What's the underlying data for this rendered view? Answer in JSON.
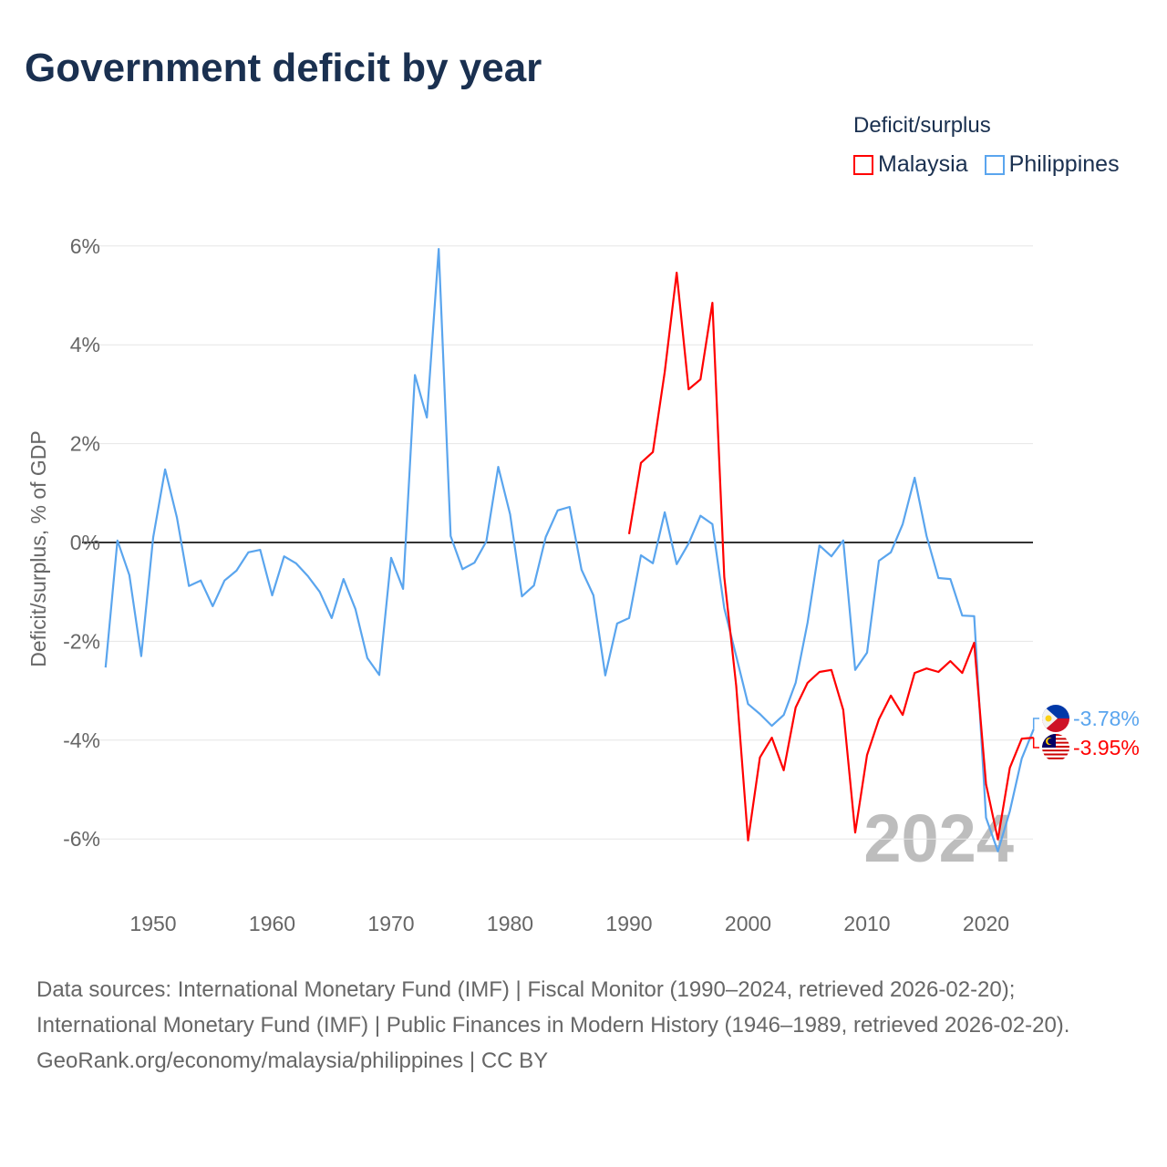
{
  "title": "Government deficit by year",
  "legend": {
    "title": "Deficit/surplus",
    "items": [
      {
        "name": "Malaysia",
        "color": "#ff0000"
      },
      {
        "name": "Philippines",
        "color": "#5aa5ee"
      }
    ]
  },
  "year_watermark": "2024",
  "end_labels": {
    "Philippines": "-3.78%",
    "Malaysia": "-3.95%"
  },
  "footer": {
    "sources": "Data sources: International Monetary Fund (IMF) | Fiscal Monitor (1990–2024, retrieved 2026-02-20); International Monetary Fund (IMF) | Public Finances in Modern History (1946–1989, retrieved 2026-02-20).",
    "credit": "GeoRank.org/economy/malaysia/philippines | CC BY"
  },
  "chart_data": {
    "type": "line",
    "title": "Government deficit by year",
    "xlabel": "",
    "ylabel": "Deficit/surplus, % of GDP",
    "xlim": [
      1946,
      2024
    ],
    "ylim": [
      -7,
      6.5
    ],
    "x_ticks": [
      1950,
      1960,
      1970,
      1980,
      1990,
      2000,
      2010,
      2020
    ],
    "x_tick_labels": [
      "1950",
      "1960",
      "1970",
      "1980",
      "1990",
      "2000",
      "2010",
      "2020"
    ],
    "y_ticks": [
      6,
      4,
      2,
      0,
      -2,
      -4,
      -6
    ],
    "y_tick_labels": [
      "6%",
      "4%",
      "2%",
      "0%",
      "-2%",
      "-4%",
      "-6%"
    ],
    "grid": true,
    "legend_position": "top-right",
    "series": [
      {
        "name": "Philippines",
        "color": "#5aa5ee",
        "start_year": 1946,
        "values": [
          -2.53,
          0.04,
          -0.66,
          -2.3,
          0.1,
          1.48,
          0.5,
          -0.88,
          -0.77,
          -1.29,
          -0.77,
          -0.57,
          -0.2,
          -0.15,
          -1.07,
          -0.28,
          -0.42,
          -0.68,
          -1.0,
          -1.53,
          -0.74,
          -1.35,
          -2.34,
          -2.68,
          -0.31,
          -0.94,
          3.39,
          2.53,
          5.94,
          0.13,
          -0.54,
          -0.41,
          0.02,
          1.53,
          0.57,
          -1.09,
          -0.87,
          0.11,
          0.65,
          0.72,
          -0.55,
          -1.07,
          -2.69,
          -1.64,
          -1.53,
          -0.26,
          -0.42,
          0.61,
          -0.44,
          -0.02,
          0.54,
          0.37,
          -1.33,
          -2.3,
          -3.27,
          -3.47,
          -3.71,
          -3.49,
          -2.84,
          -1.62,
          -0.06,
          -0.28,
          0.04,
          -2.58,
          -2.23,
          -0.37,
          -0.2,
          0.37,
          1.31,
          0.13,
          -0.72,
          -0.74,
          -1.48,
          -1.49,
          -5.57,
          -6.25,
          -5.44,
          -4.37,
          -3.78
        ]
      },
      {
        "name": "Malaysia",
        "color": "#ff0000",
        "start_year": 1990,
        "values": [
          0.17,
          1.61,
          1.83,
          3.45,
          5.46,
          3.1,
          3.3,
          4.85,
          -0.7,
          -2.9,
          -6.03,
          -4.35,
          -3.95,
          -4.61,
          -3.34,
          -2.84,
          -2.62,
          -2.58,
          -3.39,
          -5.87,
          -4.3,
          -3.58,
          -3.1,
          -3.49,
          -2.64,
          -2.55,
          -2.62,
          -2.4,
          -2.64,
          -2.03,
          -4.89,
          -6.01,
          -4.56,
          -3.97,
          -3.95
        ]
      }
    ]
  }
}
